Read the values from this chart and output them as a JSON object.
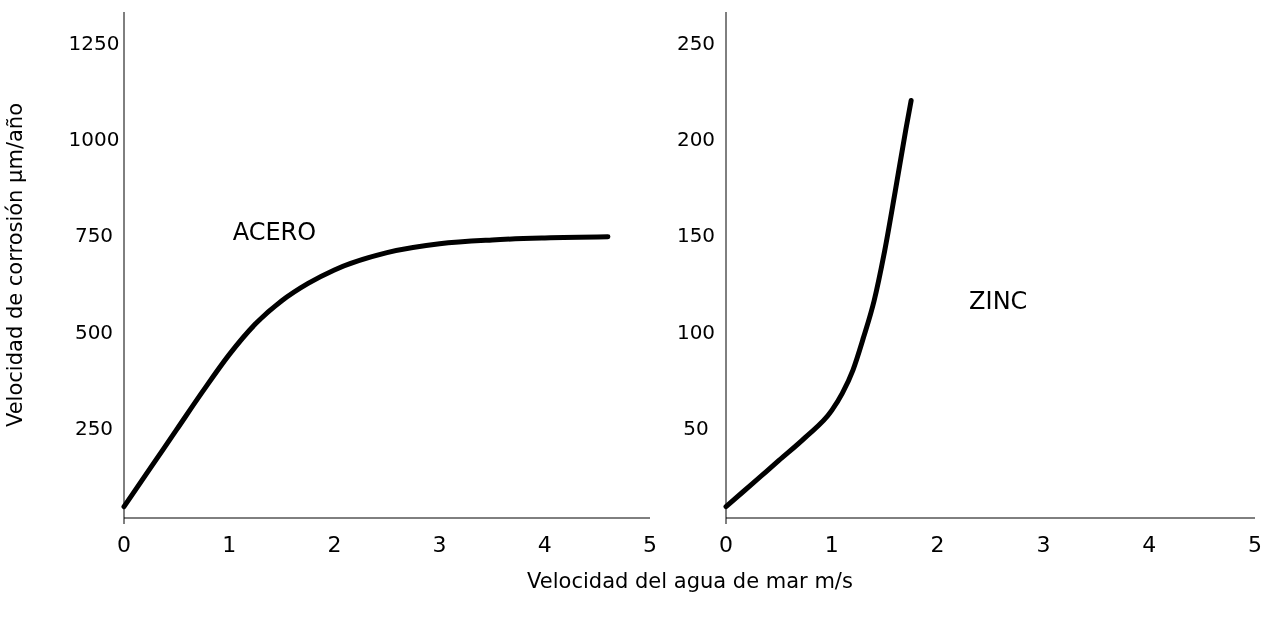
{
  "chart_data": [
    {
      "type": "line",
      "ylabel": "Velocidad de corrosión µm/año",
      "xlabel": "Velocidad del agua de mar m/s",
      "xlim": [
        0,
        5
      ],
      "ylim": [
        0,
        1330
      ],
      "xticks": [
        0,
        1,
        2,
        3,
        4,
        5
      ],
      "yticks": [
        250,
        500,
        750,
        1000,
        1250
      ],
      "grid": false,
      "series": [
        {
          "name": "ACERO",
          "color": "#000000",
          "x": [
            0,
            0.25,
            0.5,
            0.75,
            1,
            1.25,
            1.5,
            1.75,
            2,
            2.5,
            3,
            3.5,
            4,
            4.6
          ],
          "values": [
            45,
            145,
            245,
            345,
            440,
            520,
            580,
            625,
            660,
            705,
            728,
            738,
            743,
            746
          ]
        }
      ]
    },
    {
      "type": "line",
      "xlim": [
        0,
        5
      ],
      "ylim": [
        0,
        266
      ],
      "xticks": [
        0,
        1,
        2,
        3,
        4,
        5
      ],
      "yticks": [
        50,
        100,
        150,
        200,
        250
      ],
      "grid": false,
      "series": [
        {
          "name": "ZINC",
          "color": "#000000",
          "x": [
            0,
            0.25,
            0.5,
            0.75,
            1,
            1.1,
            1.2,
            1.3,
            1.4,
            1.5,
            1.6,
            1.7,
            1.75
          ],
          "values": [
            9,
            21,
            33,
            45,
            59,
            68,
            80,
            97,
            116,
            142,
            173,
            205,
            220
          ]
        }
      ]
    }
  ]
}
